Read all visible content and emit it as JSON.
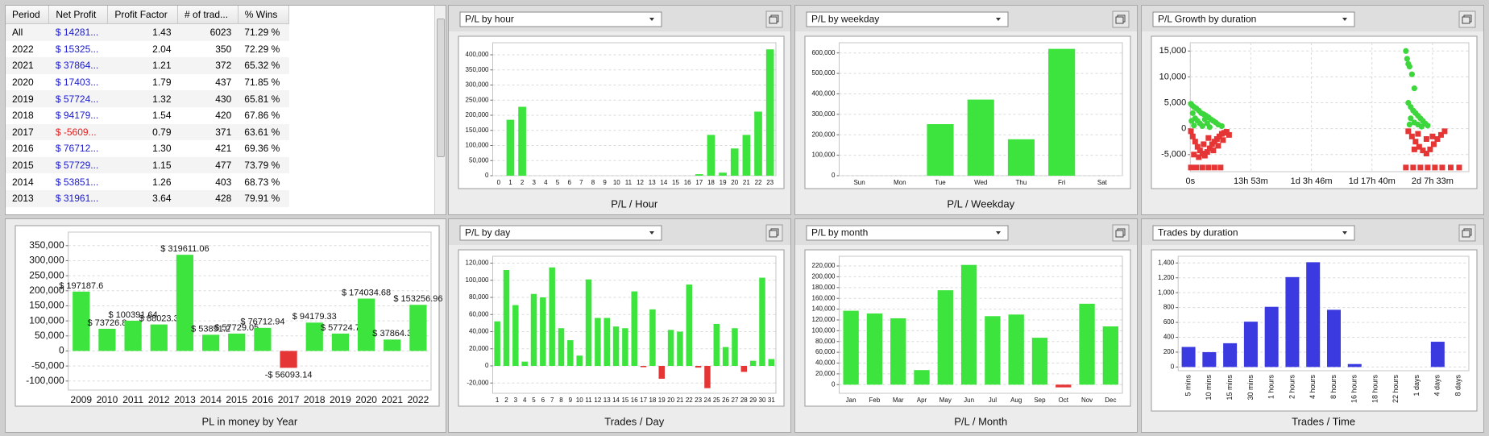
{
  "table": {
    "columns": [
      "Period",
      "Net Profit",
      "Profit Factor",
      "# of trad...",
      "% Wins"
    ],
    "rows": [
      [
        "All",
        "$ 14281...",
        "1.43",
        "6023",
        "71.29 %"
      ],
      [
        "2022",
        "$ 15325...",
        "2.04",
        "350",
        "72.29 %"
      ],
      [
        "2021",
        "$ 37864...",
        "1.21",
        "372",
        "65.32 %"
      ],
      [
        "2020",
        "$ 17403...",
        "1.79",
        "437",
        "71.85 %"
      ],
      [
        "2019",
        "$ 57724...",
        "1.32",
        "430",
        "65.81 %"
      ],
      [
        "2018",
        "$ 94179...",
        "1.54",
        "420",
        "67.86 %"
      ],
      [
        "2017",
        "$ -5609...",
        "0.79",
        "371",
        "63.61 %"
      ],
      [
        "2016",
        "$ 76712...",
        "1.30",
        "421",
        "69.36 %"
      ],
      [
        "2015",
        "$ 57729...",
        "1.15",
        "477",
        "73.79 %"
      ],
      [
        "2014",
        "$ 53851...",
        "1.26",
        "403",
        "68.73 %"
      ],
      [
        "2013",
        "$ 31961...",
        "3.64",
        "428",
        "79.91 %"
      ]
    ]
  },
  "chart_data": [
    {
      "type": "bar",
      "title": "P/L by hour",
      "x_label": "P/L / Hour",
      "color": "#3de43d",
      "grid": true,
      "categories": [
        "0",
        "1",
        "2",
        "3",
        "4",
        "5",
        "6",
        "7",
        "8",
        "9",
        "10",
        "11",
        "12",
        "13",
        "14",
        "15",
        "16",
        "17",
        "18",
        "19",
        "20",
        "21",
        "22",
        "23"
      ],
      "values": [
        0,
        185000,
        228000,
        0,
        0,
        0,
        0,
        0,
        0,
        0,
        0,
        0,
        0,
        0,
        0,
        0,
        0,
        5000,
        135000,
        10000,
        90000,
        135000,
        212000,
        418000
      ],
      "ylim": [
        0,
        440000
      ],
      "yticks": [
        0,
        {
          "value": 50000,
          "label": "50,000"
        },
        {
          "value": 100000,
          "label": "100,000"
        },
        {
          "value": 150000,
          "label": "150,000"
        },
        {
          "value": 200000,
          "label": "200,000"
        },
        {
          "value": 250000,
          "label": "250,000"
        },
        {
          "value": 300000,
          "label": "300,000"
        },
        {
          "value": 350000,
          "label": "350,000"
        },
        {
          "value": 400000,
          "label": "400,000"
        }
      ]
    },
    {
      "type": "bar",
      "title": "P/L by weekday",
      "x_label": "P/L / Weekday",
      "color": "#3de43d",
      "grid": true,
      "categories": [
        "Sun",
        "Mon",
        "Tue",
        "Wed",
        "Thu",
        "Fri",
        "Sat"
      ],
      "values": [
        0,
        0,
        252000,
        372000,
        178000,
        620000,
        0
      ],
      "ylim": [
        0,
        650000
      ],
      "yticks": [
        0,
        {
          "value": 100000,
          "label": "100,000"
        },
        {
          "value": 200000,
          "label": "200,000"
        },
        {
          "value": 300000,
          "label": "300,000"
        },
        {
          "value": 400000,
          "label": "400,000"
        },
        {
          "value": 500000,
          "label": "500,000"
        },
        {
          "value": 600000,
          "label": "600,000"
        }
      ]
    },
    {
      "type": "scatter",
      "title": "P/L Growth by duration",
      "grid": true,
      "xlim": [
        0,
        230000
      ],
      "ylim": [
        -8300,
        16600
      ],
      "xticks": [
        {
          "value": 0,
          "label": "0s"
        },
        {
          "value": 50000,
          "label": "13h 53m"
        },
        {
          "value": 100000,
          "label": "1d 3h 46m"
        },
        {
          "value": 150000,
          "label": "1d 17h 40m"
        },
        {
          "value": 200000,
          "label": "2d 7h 33m"
        }
      ],
      "yticks": [
        {
          "value": -5000,
          "label": "-5,000"
        },
        0,
        {
          "value": 5000,
          "label": "5,000"
        },
        {
          "value": 10000,
          "label": "10,000"
        },
        {
          "value": 15000,
          "label": "15,000"
        }
      ],
      "series": [
        {
          "color": "#3dd63d",
          "marker": "circle",
          "x": [
            500,
            1500,
            3000,
            5000,
            7000,
            9000,
            11000,
            13000,
            15000,
            17000,
            19000,
            21000,
            23000,
            26000,
            2000,
            4000,
            6000,
            8000,
            10000,
            12000,
            14000,
            16000,
            1000,
            3000,
            178000,
            179000,
            180000,
            181000,
            183000,
            185000,
            180000,
            182000,
            184000,
            186000,
            188000,
            190000,
            192000,
            194000,
            196000,
            182000,
            185000,
            188000,
            191000,
            181000
          ],
          "y": [
            4800,
            4500,
            4200,
            3900,
            3500,
            3000,
            2800,
            2500,
            2200,
            1800,
            1500,
            1200,
            800,
            500,
            3000,
            2000,
            1500,
            1000,
            500,
            1800,
            1000,
            300,
            1500,
            600,
            15000,
            13500,
            12500,
            12000,
            10500,
            7800,
            5000,
            4200,
            3500,
            3000,
            2500,
            2000,
            1500,
            1000,
            600,
            2000,
            1200,
            800,
            400,
            800
          ]
        },
        {
          "color": "#e53535",
          "marker": "square",
          "x": [
            500,
            2000,
            4000,
            6000,
            8000,
            10000,
            12000,
            14000,
            16000,
            18000,
            20000,
            22000,
            24000,
            26000,
            28000,
            30000,
            32000,
            3000,
            7000,
            11000,
            15000,
            19000,
            23000,
            27000,
            500,
            5000,
            10000,
            15000,
            20000,
            25000,
            180000,
            183000,
            186000,
            189000,
            192000,
            195000,
            198000,
            201000,
            204000,
            207000,
            210000,
            188000,
            195000,
            200000,
            185000,
            178000,
            184000,
            190000,
            196000,
            202000,
            208000,
            215000,
            222000
          ],
          "y": [
            -500,
            -1500,
            -2500,
            -3500,
            -4200,
            -4800,
            -5200,
            -4500,
            -3800,
            -3000,
            -2500,
            -2000,
            -1500,
            -1000,
            -800,
            -600,
            -1200,
            -5000,
            -5500,
            -3000,
            -1800,
            -4200,
            -3300,
            -2200,
            -7500,
            -7500,
            -7500,
            -7500,
            -7500,
            -7500,
            -500,
            -1500,
            -2500,
            -3500,
            -4200,
            -4800,
            -4000,
            -3000,
            -2000,
            -1200,
            -500,
            -1000,
            -2000,
            -1500,
            -4000,
            -7500,
            -7500,
            -7500,
            -7500,
            -7500,
            -7500,
            -7500,
            -7500
          ]
        }
      ]
    },
    {
      "type": "bar",
      "x_label": "PL in money by Year",
      "color": "#3de43d",
      "negative_color": "#e53535",
      "grid": true,
      "categories": [
        "2009",
        "2010",
        "2011",
        "2012",
        "2013",
        "2014",
        "2015",
        "2016",
        "2017",
        "2018",
        "2019",
        "2020",
        "2021",
        "2022"
      ],
      "values": [
        197187.6,
        73726.8,
        100391.64,
        88023.3,
        319611.06,
        53851.2,
        57729.05,
        76712.94,
        -56093.14,
        94179.33,
        57724.7,
        174034.68,
        37864.3,
        153256.96
      ],
      "value_labels": [
        "$ 197187.6",
        "$ 73726.8",
        "$ 100391.64",
        "$ 88023.3",
        "$ 319611.06",
        "$ 53851.2",
        "$ 57729.05",
        "$ 76712.94",
        "-$ 56093.14",
        "$ 94179.33",
        "$ 57724.7",
        "$ 174034.68",
        "$ 37864.3",
        "$ 153256.96"
      ],
      "ylim": [
        -130000,
        395000
      ],
      "yticks": [
        {
          "value": -100000,
          "label": "-100,000"
        },
        {
          "value": -50000,
          "label": "-50,000"
        },
        0,
        {
          "value": 50000,
          "label": "50,000"
        },
        {
          "value": 100000,
          "label": "100,000"
        },
        {
          "value": 150000,
          "label": "150,000"
        },
        {
          "value": 200000,
          "label": "200,000"
        },
        {
          "value": 250000,
          "label": "250,000"
        },
        {
          "value": 300000,
          "label": "300,000"
        },
        {
          "value": 350000,
          "label": "350,000"
        }
      ]
    },
    {
      "type": "bar",
      "title": "P/L by day",
      "x_label": "Trades / Day",
      "color": "#3de43d",
      "negative_color": "#e53535",
      "grid": true,
      "categories": [
        "1",
        "2",
        "3",
        "4",
        "5",
        "6",
        "7",
        "8",
        "9",
        "10",
        "11",
        "12",
        "13",
        "14",
        "15",
        "16",
        "17",
        "18",
        "19",
        "20",
        "21",
        "22",
        "23",
        "24",
        "25",
        "26",
        "27",
        "28",
        "29",
        "30",
        "31"
      ],
      "values": [
        52000,
        112000,
        71000,
        5000,
        84000,
        80000,
        115000,
        44000,
        30000,
        12000,
        101000,
        56000,
        56000,
        46000,
        44000,
        87000,
        -1500,
        66000,
        -15000,
        42000,
        40000,
        95000,
        -2000,
        -26000,
        49000,
        22000,
        44000,
        -7000,
        6000,
        103000,
        8000
      ],
      "ylim": [
        -32000,
        128000
      ],
      "yticks": [
        {
          "value": -20000,
          "label": "-20,000"
        },
        0,
        {
          "value": 20000,
          "label": "20,000"
        },
        {
          "value": 40000,
          "label": "40,000"
        },
        {
          "value": 60000,
          "label": "60,000"
        },
        {
          "value": 80000,
          "label": "80,000"
        },
        {
          "value": 100000,
          "label": "100,000"
        },
        {
          "value": 120000,
          "label": "120,000"
        }
      ]
    },
    {
      "type": "bar",
      "title": "P/L by month",
      "x_label": "P/L / Month",
      "color": "#3de43d",
      "negative_color": "#e53535",
      "grid": true,
      "categories": [
        "Jan",
        "Feb",
        "Mar",
        "Apr",
        "May",
        "Jun",
        "Jul",
        "Aug",
        "Sep",
        "Oct",
        "Nov",
        "Dec"
      ],
      "values": [
        137000,
        132000,
        123000,
        27000,
        175000,
        222000,
        127000,
        130000,
        87000,
        -5000,
        150000,
        108000
      ],
      "ylim": [
        -16000,
        238000
      ],
      "yticks": [
        0,
        {
          "value": 20000,
          "label": "20,000"
        },
        {
          "value": 40000,
          "label": "40,000"
        },
        {
          "value": 60000,
          "label": "60,000"
        },
        {
          "value": 80000,
          "label": "80,000"
        },
        {
          "value": 100000,
          "label": "100,000"
        },
        {
          "value": 120000,
          "label": "120,000"
        },
        {
          "value": 140000,
          "label": "140,000"
        },
        {
          "value": 160000,
          "label": "160,000"
        },
        {
          "value": 180000,
          "label": "180,000"
        },
        {
          "value": 200000,
          "label": "200,000"
        },
        {
          "value": 220000,
          "label": "220,000"
        }
      ]
    },
    {
      "type": "bar",
      "title": "Trades by duration",
      "x_label": "Trades / Time",
      "color": "#3a3ae0",
      "grid": true,
      "rotate_labels": true,
      "categories": [
        "5 mins",
        "10 mins",
        "15 mins",
        "30 mins",
        "1 hours",
        "2 hours",
        "4 hours",
        "8 hours",
        "16 hours",
        "18 hours",
        "22 hours",
        "1 days",
        "4 days",
        "8 days"
      ],
      "values": [
        270,
        200,
        320,
        610,
        810,
        1210,
        1410,
        770,
        40,
        0,
        0,
        0,
        340,
        0
      ],
      "ylim": [
        -50,
        1490
      ],
      "yticks": [
        0,
        200,
        400,
        600,
        800,
        {
          "value": 1000,
          "label": "1,000"
        },
        {
          "value": 1200,
          "label": "1,200"
        },
        {
          "value": 1400,
          "label": "1,400"
        }
      ]
    }
  ]
}
